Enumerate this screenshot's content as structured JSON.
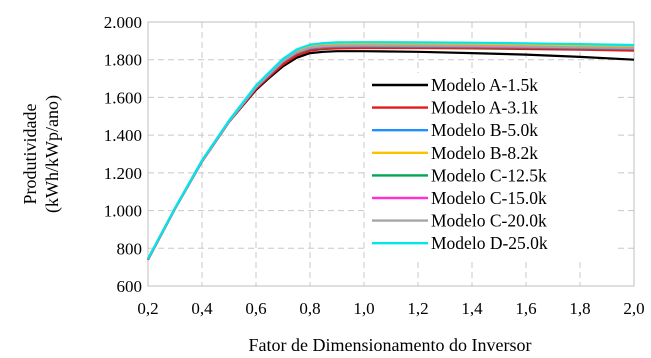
{
  "chart_data": {
    "type": "line",
    "title": "",
    "xlabel": "Fator de Dimensionamento  do Inversor",
    "ylabel_line1": "Produtividade",
    "ylabel_line2": "(kWh/kWp/ano)",
    "xlim": [
      0.2,
      2.0
    ],
    "ylim": [
      600,
      2000
    ],
    "x_ticks": [
      0.2,
      0.4,
      0.6,
      0.8,
      1.0,
      1.2,
      1.4,
      1.6,
      1.8,
      2.0
    ],
    "x_tick_labels": [
      "0,2",
      "0,4",
      "0,6",
      "0,8",
      "1,0",
      "1,2",
      "1,4",
      "1,6",
      "1,8",
      "2,0"
    ],
    "y_ticks": [
      600,
      800,
      1000,
      1200,
      1400,
      1600,
      1800,
      2000
    ],
    "y_tick_labels": [
      "600",
      "800",
      "1.000",
      "1.200",
      "1.400",
      "1.600",
      "1.800",
      "2.000"
    ],
    "grid": "dashed",
    "legend_position": "bottom-right",
    "x": [
      0.2,
      0.3,
      0.4,
      0.5,
      0.6,
      0.65,
      0.7,
      0.75,
      0.8,
      0.85,
      0.9,
      1.0,
      1.2,
      1.4,
      1.6,
      1.8,
      2.0
    ],
    "series": [
      {
        "name": "Modelo A-1.5k",
        "color": "#000000",
        "values": [
          740,
          1010,
          1260,
          1470,
          1640,
          1705,
          1765,
          1810,
          1835,
          1842,
          1845,
          1845,
          1842,
          1835,
          1827,
          1815,
          1800
        ]
      },
      {
        "name": "Modelo A-3.1k",
        "color": "#e31a1c",
        "values": [
          740,
          1010,
          1260,
          1470,
          1645,
          1712,
          1775,
          1822,
          1848,
          1857,
          1860,
          1862,
          1862,
          1860,
          1857,
          1853,
          1848
        ]
      },
      {
        "name": "Modelo B-5.0k",
        "color": "#1e90ff",
        "values": [
          745,
          1012,
          1265,
          1475,
          1660,
          1730,
          1800,
          1848,
          1874,
          1882,
          1886,
          1887,
          1886,
          1884,
          1881,
          1877,
          1872
        ]
      },
      {
        "name": "Modelo B-8.2k",
        "color": "#ffc000",
        "values": [
          745,
          1012,
          1265,
          1475,
          1658,
          1728,
          1797,
          1845,
          1871,
          1879,
          1883,
          1884,
          1883,
          1881,
          1878,
          1874,
          1869
        ]
      },
      {
        "name": "Modelo C-12.5k",
        "color": "#00a651",
        "values": [
          742,
          1011,
          1262,
          1472,
          1652,
          1720,
          1788,
          1834,
          1858,
          1865,
          1868,
          1869,
          1868,
          1866,
          1864,
          1860,
          1856
        ]
      },
      {
        "name": "Modelo C-15.0k",
        "color": "#ff33cc",
        "values": [
          742,
          1011,
          1262,
          1472,
          1653,
          1722,
          1790,
          1837,
          1861,
          1868,
          1871,
          1872,
          1871,
          1869,
          1867,
          1863,
          1859
        ]
      },
      {
        "name": "Modelo C-20.0k",
        "color": "#a6a6a6",
        "values": [
          743,
          1011,
          1263,
          1473,
          1655,
          1725,
          1793,
          1840,
          1865,
          1872,
          1875,
          1876,
          1875,
          1873,
          1870,
          1866,
          1862
        ]
      },
      {
        "name": "Modelo D-25.0k",
        "color": "#00e5ee",
        "values": [
          745,
          1013,
          1266,
          1477,
          1663,
          1735,
          1805,
          1854,
          1880,
          1888,
          1892,
          1893,
          1892,
          1890,
          1887,
          1883,
          1878
        ]
      }
    ]
  }
}
